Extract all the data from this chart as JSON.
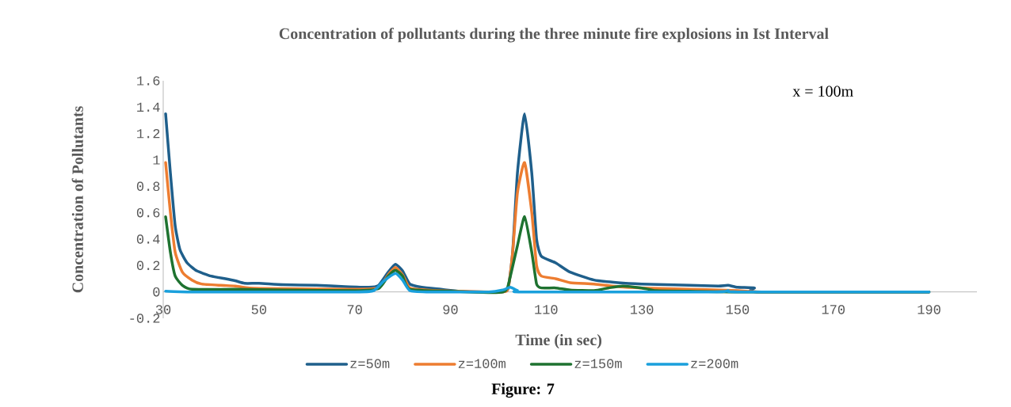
{
  "chart_data": {
    "type": "line",
    "title": "Concentration of pollutants during the three minute fire explosions in Ist Interval",
    "xlabel": "Time (in sec)",
    "ylabel": "Concentration of Pollutants",
    "annotations": [
      "x = 100m",
      "Figure: 7"
    ],
    "xlim": [
      30,
      200
    ],
    "xticks": [
      30,
      50,
      70,
      90,
      110,
      130,
      150,
      170,
      190
    ],
    "ylim": [
      -0.2,
      1.6
    ],
    "yticks": [
      -0.2,
      0,
      0.2,
      0.4,
      0.6,
      0.8,
      1,
      1.2,
      1.4,
      1.6
    ],
    "grid": false,
    "legend": "bottom",
    "marker": "none",
    "line_style": "solid",
    "series": [
      {
        "name": "z=50m",
        "color": "#1f5f8b",
        "x": [
          30.5,
          31.5,
          32.5,
          33.5,
          35,
          37,
          40,
          43,
          45,
          47,
          50,
          55,
          62,
          68,
          73,
          75,
          77,
          78.5,
          80,
          81.5,
          84,
          88,
          92,
          97,
          100,
          102,
          103,
          104,
          105.5,
          107,
          108,
          109,
          112,
          115,
          120,
          125,
          130,
          140,
          146,
          148,
          150,
          153.5,
          154,
          190
        ],
        "values": [
          1.35,
          0.9,
          0.5,
          0.32,
          0.22,
          0.16,
          0.12,
          0.1,
          0.085,
          0.065,
          0.065,
          0.055,
          0.05,
          0.04,
          0.035,
          0.05,
          0.15,
          0.21,
          0.16,
          0.06,
          0.035,
          0.02,
          0.005,
          0,
          0,
          0.02,
          0.3,
          0.9,
          1.35,
          0.9,
          0.4,
          0.27,
          0.22,
          0.15,
          0.09,
          0.07,
          0.06,
          0.05,
          0.045,
          0.05,
          0.035,
          0.03,
          0,
          0
        ]
      },
      {
        "name": "z=100m",
        "color": "#ed7d31",
        "x": [
          30.5,
          31.5,
          32.5,
          34,
          36,
          38,
          42,
          45,
          48,
          55,
          70,
          75,
          77,
          78.5,
          80,
          81.5,
          85,
          92,
          100,
          102,
          103,
          104,
          105.5,
          107,
          108,
          109,
          112,
          115,
          120,
          125,
          130,
          140,
          150,
          155,
          190
        ],
        "values": [
          0.98,
          0.6,
          0.3,
          0.15,
          0.09,
          0.06,
          0.05,
          0.045,
          0.03,
          0.025,
          0.02,
          0.03,
          0.13,
          0.185,
          0.13,
          0.03,
          0.015,
          0.005,
          0,
          0.02,
          0.3,
          0.75,
          0.98,
          0.6,
          0.2,
          0.12,
          0.1,
          0.07,
          0.06,
          0.04,
          0.03,
          0.02,
          0.01,
          0,
          0
        ]
      },
      {
        "name": "z=150m",
        "color": "#1e7230",
        "x": [
          30.5,
          31.5,
          32.5,
          34,
          36,
          45,
          55,
          70,
          75,
          77,
          78.5,
          80,
          81.5,
          90,
          98,
          101,
          102,
          104,
          105.5,
          107,
          108,
          109,
          112,
          115,
          120,
          123,
          126,
          130,
          133,
          140,
          150,
          190
        ],
        "values": [
          0.57,
          0.3,
          0.12,
          0.05,
          0.02,
          0.02,
          0.015,
          0.01,
          0.025,
          0.12,
          0.165,
          0.12,
          0.02,
          0.005,
          -0.005,
          0,
          0.04,
          0.35,
          0.57,
          0.3,
          0.06,
          0.03,
          0.03,
          0.015,
          0.01,
          0.03,
          0.045,
          0.03,
          0.01,
          0.005,
          0,
          0
        ]
      },
      {
        "name": "z=200m",
        "color": "#1aa0dc",
        "x": [
          30.5,
          35,
          70,
          74,
          76,
          78.5,
          80,
          81.5,
          85,
          98,
          101,
          102.5,
          104,
          105,
          145,
          148,
          150,
          190
        ],
        "values": [
          0.005,
          0,
          0,
          0.01,
          0.08,
          0.14,
          0.09,
          0.01,
          0,
          0,
          0.015,
          0.035,
          0.01,
          0,
          0,
          0.01,
          0,
          0
        ]
      }
    ]
  }
}
